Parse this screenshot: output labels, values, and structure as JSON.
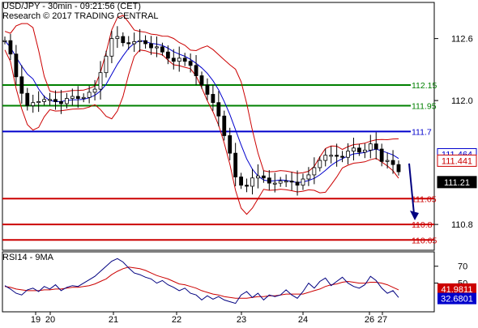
{
  "header": {
    "title": "USD/JPY - 30min - 09:21:56 (CET)",
    "credit": "Research © 2017 TRADING CENTRAL"
  },
  "rsi_panel": {
    "label": "RSI14 - 9MA"
  },
  "colors": {
    "price_candles": "#000000",
    "bollinger": "#cc0000",
    "moving_average": "#0000cc",
    "support": "#cc0000",
    "pivot": "#0000cc",
    "resistance": "#008000",
    "forecast_arrow": "#000080",
    "rsi_line": "#000080",
    "rsi_ma": "#cc0000"
  },
  "chart_data": [
    {
      "type": "candlestick",
      "y_axis_ticks": [
        {
          "label": "112.6",
          "value": 112.6
        },
        {
          "label": "112.0",
          "value": 112.0
        },
        {
          "label": "110.8",
          "value": 110.8
        }
      ],
      "ylim": [
        110.55,
        112.95
      ],
      "x_axis_ticks": [
        "19",
        "20",
        "21",
        "22",
        "23",
        "24",
        "26",
        "27"
      ],
      "levels": [
        {
          "label": "112.15",
          "value": 112.15,
          "kind": "resistance"
        },
        {
          "label": "111.95",
          "value": 111.95,
          "kind": "resistance"
        },
        {
          "label": "111.7",
          "value": 111.7,
          "kind": "pivot"
        },
        {
          "label": "111.05",
          "value": 111.05,
          "kind": "support"
        },
        {
          "label": "110.8",
          "value": 110.8,
          "kind": "support"
        },
        {
          "label": "110.65",
          "value": 110.65,
          "kind": "support"
        }
      ],
      "price_tags": [
        {
          "label": "111.464",
          "value": 111.464,
          "style": "blue"
        },
        {
          "label": "111.441",
          "value": 111.441,
          "style": "red"
        },
        {
          "label": "111.21",
          "value": 111.21,
          "style": "black"
        }
      ],
      "forecast": {
        "from": 111.39,
        "to": 110.84,
        "direction": "down"
      },
      "series": [
        {
          "name": "price",
          "values": [
            112.58,
            112.45,
            112.23,
            112.07,
            111.95,
            111.98,
            111.99,
            112.01,
            112.01,
            111.99,
            111.97,
            112.02,
            112.04,
            112.02,
            112.03,
            112.08,
            112.11,
            112.27,
            112.43,
            112.6,
            112.62,
            112.56,
            112.55,
            112.57,
            112.58,
            112.55,
            112.51,
            112.52,
            112.47,
            112.41,
            112.38,
            112.41,
            112.38,
            112.34,
            112.24,
            112.15,
            112.06,
            111.98,
            111.85,
            111.66,
            111.49,
            111.26,
            111.18,
            111.17,
            111.25,
            111.27,
            111.25,
            111.2,
            111.2,
            111.22,
            111.22,
            111.21,
            111.18,
            111.24,
            111.28,
            111.35,
            111.42,
            111.47,
            111.47,
            111.46,
            111.45,
            111.51,
            111.54,
            111.5,
            111.52,
            111.58,
            111.53,
            111.41,
            111.42,
            111.38,
            111.31
          ]
        }
      ]
    },
    {
      "type": "line",
      "title": "RSI14 - 9MA",
      "y_axis_ticks": [
        {
          "label": "70",
          "value": 70
        },
        {
          "label": "50",
          "value": 50
        }
      ],
      "ylim": [
        16,
        87
      ],
      "x_axis_ticks": [
        "19",
        "20",
        "21",
        "22",
        "23",
        "24",
        "26",
        "27"
      ],
      "value_tags": [
        {
          "label": "41.9811",
          "value": 41.9811,
          "style": "red"
        },
        {
          "label": "32.6801",
          "value": 32.6801,
          "style": "blue"
        }
      ],
      "series": [
        {
          "name": "RSI14",
          "values": [
            47,
            43,
            38,
            36,
            42,
            44,
            40,
            46,
            43,
            48,
            41,
            45,
            47,
            46,
            50,
            54,
            58,
            64,
            70,
            76,
            79,
            75,
            68,
            62,
            60,
            57,
            55,
            50,
            53,
            48,
            45,
            41,
            44,
            38,
            36,
            30,
            35,
            31,
            34,
            30,
            28,
            26,
            36,
            40,
            33,
            38,
            30,
            36,
            34,
            36,
            42,
            36,
            32,
            40,
            50,
            44,
            52,
            56,
            47,
            52,
            57,
            50,
            46,
            44,
            48,
            58,
            53,
            44,
            38,
            41,
            33
          ]
        },
        {
          "name": "9MA",
          "values": [
            46,
            45,
            43,
            42,
            41,
            41,
            41,
            42,
            42,
            43,
            43,
            44,
            45,
            45,
            46,
            47,
            49,
            52,
            55,
            60,
            64,
            67,
            69,
            68,
            67,
            65,
            62,
            59,
            57,
            55,
            52,
            49,
            48,
            46,
            44,
            41,
            39,
            37,
            36,
            34,
            33,
            32,
            32,
            32,
            33,
            34,
            34,
            35,
            35,
            36,
            37,
            37,
            37,
            37,
            39,
            41,
            43,
            46,
            48,
            49,
            51,
            52,
            51,
            50,
            50,
            51,
            51,
            50,
            48,
            45,
            42
          ]
        }
      ]
    }
  ]
}
